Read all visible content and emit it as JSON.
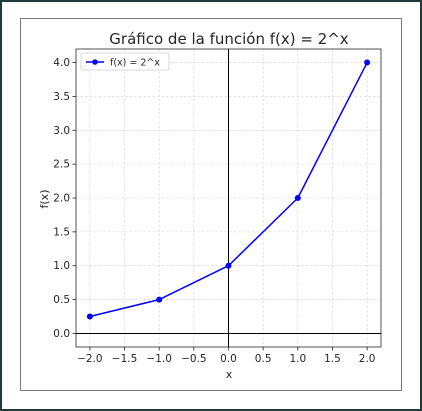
{
  "chart_data": {
    "type": "line",
    "title": "Gráfico de la función f(x) = 2^x",
    "xlabel": "x",
    "ylabel": "f(x)",
    "xlim": [
      -2.2,
      2.2
    ],
    "ylim": [
      -0.2,
      4.2
    ],
    "x_ticks": [
      -2.0,
      -1.5,
      -1.0,
      -0.5,
      0.0,
      0.5,
      1.0,
      1.5,
      2.0
    ],
    "y_ticks": [
      0.0,
      0.5,
      1.0,
      1.5,
      2.0,
      2.5,
      3.0,
      3.5,
      4.0
    ],
    "x_tick_labels": [
      "−2.0",
      "−1.5",
      "−1.0",
      "−0.5",
      "0.0",
      "0.5",
      "1.0",
      "1.5",
      "2.0"
    ],
    "y_tick_labels": [
      "0.0",
      "0.5",
      "1.0",
      "1.5",
      "2.0",
      "2.5",
      "3.0",
      "3.5",
      "4.0"
    ],
    "grid": true,
    "legend_position": "top-left",
    "series": [
      {
        "name": "f(x) = 2^x",
        "color": "#0000ff",
        "marker": "circle",
        "x": [
          -2,
          -1,
          0,
          1,
          2
        ],
        "y": [
          0.25,
          0.5,
          1,
          2,
          4
        ]
      }
    ]
  }
}
